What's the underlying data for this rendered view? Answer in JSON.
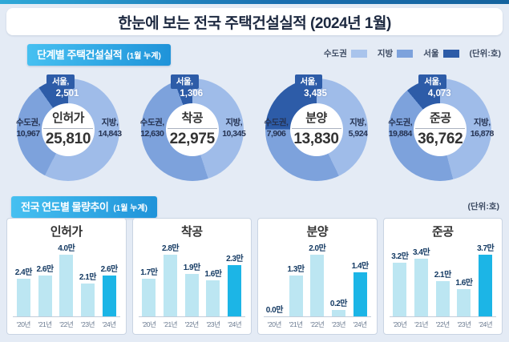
{
  "page": {
    "title": "한눈에 보는 전국 주택건설실적 (2024년 1월)"
  },
  "sections": [
    {
      "title": "단계별 주택건설실적",
      "subtitle": "(1월 누계)",
      "unit_label": "(단위:호)"
    },
    {
      "title": "전국 연도별 물량추이",
      "subtitle": "(1월 누계)",
      "unit_label": "(단위:호)"
    }
  ],
  "legend": {
    "items": [
      {
        "label": "수도권",
        "color": "#a9c4ec"
      },
      {
        "label": "지방",
        "color": "#7da2dc"
      },
      {
        "label": "서울",
        "color": "#2d5ca8"
      }
    ],
    "unit_label": "(단위:호)"
  },
  "chart_data": [
    {
      "type": "donut",
      "title": "인허가",
      "total": 25810,
      "total_label": "25,810",
      "unit": "호",
      "slices": [
        {
          "name": "수도권",
          "label": "수도권,",
          "value": 10967,
          "value_label": "10,967",
          "color": "#7da2dc",
          "side": "left"
        },
        {
          "name": "지방",
          "label": "지방,",
          "value": 14843,
          "value_label": "14,843",
          "color": "#9fbce9",
          "side": "right"
        },
        {
          "name": "서울",
          "label": "서울,",
          "value": 2501,
          "value_label": "2,501",
          "color": "#2d5ca8",
          "side": "top"
        }
      ]
    },
    {
      "type": "donut",
      "title": "착공",
      "total": 22975,
      "total_label": "22,975",
      "unit": "호",
      "slices": [
        {
          "name": "수도권",
          "label": "수도권,",
          "value": 12630,
          "value_label": "12,630",
          "color": "#7da2dc",
          "side": "left"
        },
        {
          "name": "지방",
          "label": "지방,",
          "value": 10345,
          "value_label": "10,345",
          "color": "#9fbce9",
          "side": "right"
        },
        {
          "name": "서울",
          "label": "서울,",
          "value": 1306,
          "value_label": "1,306",
          "color": "#2d5ca8",
          "side": "top"
        }
      ]
    },
    {
      "type": "donut",
      "title": "분양",
      "total": 13830,
      "total_label": "13,830",
      "unit": "호",
      "slices": [
        {
          "name": "수도권",
          "label": "수도권,",
          "value": 7906,
          "value_label": "7,906",
          "color": "#7da2dc",
          "side": "left"
        },
        {
          "name": "지방",
          "label": "지방,",
          "value": 5924,
          "value_label": "5,924",
          "color": "#9fbce9",
          "side": "right"
        },
        {
          "name": "서울",
          "label": "서울,",
          "value": 3435,
          "value_label": "3,435",
          "color": "#2d5ca8",
          "side": "top"
        }
      ]
    },
    {
      "type": "donut",
      "title": "준공",
      "total": 36762,
      "total_label": "36,762",
      "unit": "호",
      "slices": [
        {
          "name": "수도권",
          "label": "수도권,",
          "value": 19884,
          "value_label": "19,884",
          "color": "#7da2dc",
          "side": "left"
        },
        {
          "name": "지방",
          "label": "지방,",
          "value": 16878,
          "value_label": "16,878",
          "color": "#9fbce9",
          "side": "right"
        },
        {
          "name": "서울",
          "label": "서울,",
          "value": 4073,
          "value_label": "4,073",
          "color": "#2d5ca8",
          "side": "top"
        }
      ]
    },
    {
      "type": "bar",
      "title": "인허가",
      "unit": "만",
      "categories": [
        "'20년",
        "'21년",
        "'22년",
        "'23년",
        "'24년"
      ],
      "values": [
        2.4,
        2.6,
        4.0,
        2.1,
        2.6
      ],
      "value_labels": [
        "2.4만",
        "2.6만",
        "4.0만",
        "2.1만",
        "2.6만"
      ],
      "highlight_index": 4,
      "bar_color": "#bce6f2",
      "highlight_color": "#1cb5e6"
    },
    {
      "type": "bar",
      "title": "착공",
      "unit": "만",
      "categories": [
        "'20년",
        "'21년",
        "'22년",
        "'23년",
        "'24년"
      ],
      "values": [
        1.7,
        2.8,
        1.9,
        1.6,
        2.3
      ],
      "value_labels": [
        "1.7만",
        "2.8만",
        "1.9만",
        "1.6만",
        "2.3만"
      ],
      "highlight_index": 4,
      "bar_color": "#bce6f2",
      "highlight_color": "#1cb5e6"
    },
    {
      "type": "bar",
      "title": "분양",
      "unit": "만",
      "categories": [
        "'20년",
        "'21년",
        "'22년",
        "'23년",
        "'24년"
      ],
      "values": [
        0.0,
        1.3,
        2.0,
        0.2,
        1.4
      ],
      "value_labels": [
        "0.0만",
        "1.3만",
        "2.0만",
        "0.2만",
        "1.4만"
      ],
      "highlight_index": 4,
      "bar_color": "#bce6f2",
      "highlight_color": "#1cb5e6"
    },
    {
      "type": "bar",
      "title": "준공",
      "unit": "만",
      "categories": [
        "'20년",
        "'21년",
        "'22년",
        "'23년",
        "'24년"
      ],
      "values": [
        3.2,
        3.4,
        2.1,
        1.6,
        3.7
      ],
      "value_labels": [
        "3.2만",
        "3.4만",
        "2.1만",
        "1.6만",
        "3.7만"
      ],
      "highlight_index": 4,
      "bar_color": "#bce6f2",
      "highlight_color": "#1cb5e6"
    }
  ]
}
